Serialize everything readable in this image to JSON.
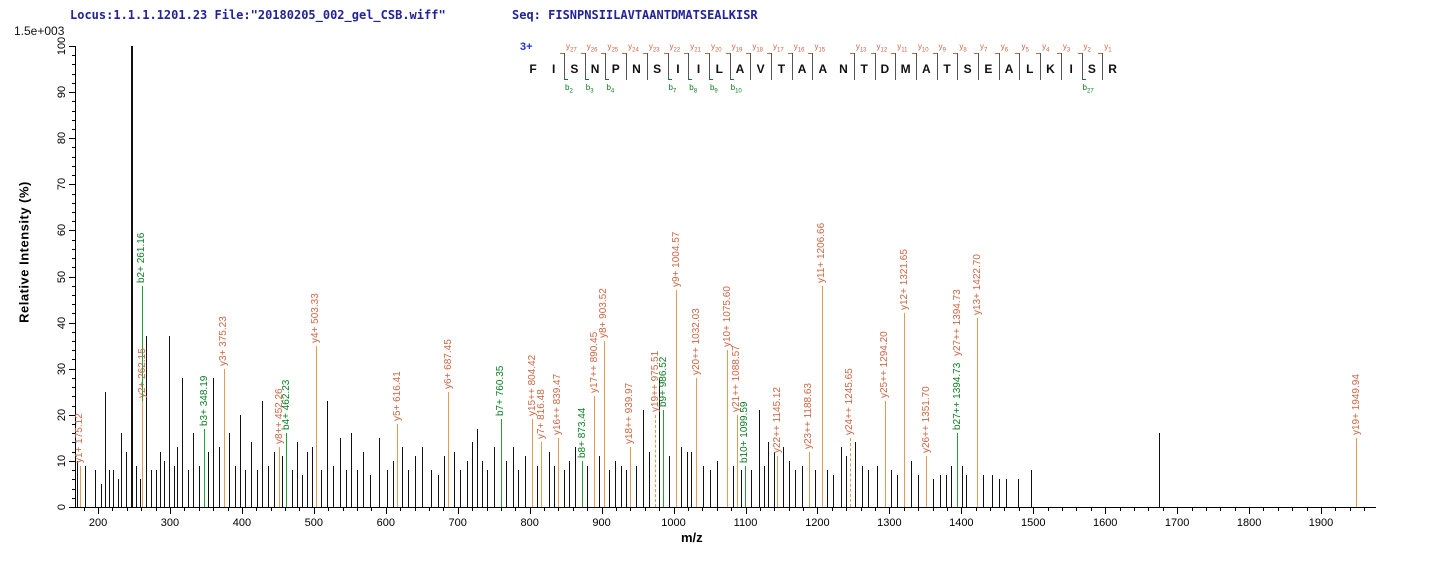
{
  "header": {
    "locus_file": "Locus:1.1.1.1201.23 File:\"20180205_002_gel_CSB.wiff\"",
    "seq_line": "Seq: FISNPNSIILAVTAANTDMATSEALKISR",
    "scale_label": "1.5e+003"
  },
  "sequence_panel": {
    "charge": "3+",
    "residues": "FISNPNSIILAVTAANTDMATSEALKISR",
    "y_marks": [
      [
        2,
        27
      ],
      [
        3,
        26
      ],
      [
        4,
        25
      ],
      [
        5,
        24
      ],
      [
        6,
        23
      ],
      [
        7,
        22
      ],
      [
        8,
        21
      ],
      [
        9,
        20
      ],
      [
        10,
        19
      ],
      [
        11,
        18
      ],
      [
        12,
        17
      ],
      [
        13,
        16
      ],
      [
        14,
        15
      ],
      [
        16,
        13
      ],
      [
        17,
        12
      ],
      [
        18,
        11
      ],
      [
        19,
        10
      ],
      [
        20,
        9
      ],
      [
        21,
        8
      ],
      [
        22,
        7
      ],
      [
        23,
        6
      ],
      [
        24,
        5
      ],
      [
        25,
        4
      ],
      [
        26,
        3
      ],
      [
        27,
        2
      ],
      [
        28,
        1
      ]
    ],
    "b_marks": [
      [
        2,
        2
      ],
      [
        3,
        3
      ],
      [
        4,
        4
      ],
      [
        7,
        7
      ],
      [
        8,
        8
      ],
      [
        9,
        9
      ],
      [
        10,
        10
      ],
      [
        27,
        27
      ]
    ]
  },
  "colors": {
    "y_ion_text": "#cc6644",
    "y_ion_line": "#e59a50",
    "b_ion_text": "#0a7d22",
    "b_ion_line": "#22a032",
    "background_peak": "#111111",
    "header_text": "#222299",
    "charge_text": "#2233cc",
    "axis": "#000000"
  },
  "chart_data": {
    "type": "bar",
    "title": "",
    "xlabel": "m/z",
    "ylabel": "Relative  Intensity (%)",
    "xlim": [
      168,
      1975
    ],
    "ylim": [
      0,
      100
    ],
    "x_major_ticks": [
      200,
      300,
      400,
      500,
      600,
      700,
      800,
      900,
      1000,
      1100,
      1200,
      1300,
      1400,
      1500,
      1600,
      1700,
      1800,
      1900
    ],
    "x_minor_step": 20,
    "y_major_ticks": [
      0,
      10,
      20,
      30,
      40,
      50,
      60,
      70,
      80,
      90,
      100
    ],
    "y_minor_step": 2,
    "annotated_peaks": [
      {
        "label": "y1+ 175.12",
        "mz": 175.12,
        "h": 9,
        "t": "y"
      },
      {
        "label": "b2+ 261.16",
        "mz": 261.16,
        "h": 48,
        "t": "b"
      },
      {
        "label": "y2+ 262.15",
        "mz": 262.15,
        "h": 23,
        "t": "y"
      },
      {
        "label": "b3+ 348.19",
        "mz": 348.19,
        "h": 17,
        "t": "b"
      },
      {
        "label": "y3+ 375.23",
        "mz": 375.23,
        "h": 30,
        "t": "y"
      },
      {
        "label": "y8++ 452.26",
        "mz": 452.26,
        "h": 13,
        "t": "y"
      },
      {
        "label": "b4+ 462.23",
        "mz": 462.23,
        "h": 16,
        "t": "b"
      },
      {
        "label": "y4+ 503.33",
        "mz": 503.33,
        "h": 35,
        "t": "y"
      },
      {
        "label": "y5+ 616.41",
        "mz": 616.41,
        "h": 18,
        "t": "y"
      },
      {
        "label": "y6+ 687.45",
        "mz": 687.45,
        "h": 25,
        "t": "y"
      },
      {
        "label": "b7+ 760.35",
        "mz": 760.35,
        "h": 19,
        "t": "b"
      },
      {
        "label": "y15++ 804.42",
        "mz": 804.42,
        "h": 19,
        "t": "y"
      },
      {
        "label": "y7+ 816.48",
        "mz": 816.48,
        "h": 14,
        "t": "y"
      },
      {
        "label": "y16++ 839.47",
        "mz": 839.47,
        "h": 15,
        "t": "y"
      },
      {
        "label": "b8+ 873.44",
        "mz": 873.44,
        "h": 10,
        "t": "b"
      },
      {
        "label": "y17++ 890.45",
        "mz": 890.45,
        "h": 24,
        "t": "y"
      },
      {
        "label": "y8+ 903.52",
        "mz": 903.52,
        "h": 36,
        "t": "y"
      },
      {
        "label": "y18++ 939.97",
        "mz": 939.97,
        "h": 13,
        "t": "y"
      },
      {
        "label": "y19++ 975.51",
        "mz": 975.51,
        "h": 20,
        "t": "y",
        "dashed": true
      },
      {
        "label": "b9+ 986.52",
        "mz": 986.52,
        "h": 21,
        "t": "b"
      },
      {
        "label": "y9+ 1004.57",
        "mz": 1004.57,
        "h": 47,
        "t": "y"
      },
      {
        "label": "y20++ 1032.03",
        "mz": 1032.03,
        "h": 28,
        "t": "y"
      },
      {
        "label": "y10+ 1075.60",
        "mz": 1075.6,
        "h": 34,
        "t": "y"
      },
      {
        "label": "y21++ 1088.57",
        "mz": 1088.57,
        "h": 20,
        "t": "y"
      },
      {
        "label": "b10+ 1099.59",
        "mz": 1099.59,
        "h": 9,
        "t": "b"
      },
      {
        "label": "y22++ 1145.12",
        "mz": 1145.12,
        "h": 11,
        "t": "y"
      },
      {
        "label": "y23++ 1188.63",
        "mz": 1188.63,
        "h": 12,
        "t": "y"
      },
      {
        "label": "y11+ 1206.66",
        "mz": 1206.66,
        "h": 48,
        "t": "y"
      },
      {
        "label": "y24++ 1245.65",
        "mz": 1245.65,
        "h": 15,
        "t": "y",
        "dashed": true
      },
      {
        "label": "y25++ 1294.20",
        "mz": 1294.2,
        "h": 23,
        "t": "y"
      },
      {
        "label": "y12+ 1321.65",
        "mz": 1321.65,
        "h": 42,
        "t": "y"
      },
      {
        "label": "y26++ 1351.70",
        "mz": 1351.7,
        "h": 11,
        "t": "y"
      },
      {
        "label": "b27++ 1394.73",
        "mz": 1394.73,
        "h": 16,
        "t": "b"
      },
      {
        "label": "y27++ 1394.73",
        "mz": 1394.73,
        "h": 16,
        "t": "y",
        "stack": 74,
        "label_only": true
      },
      {
        "label": "y13+ 1422.70",
        "mz": 1422.7,
        "h": 41,
        "t": "y"
      },
      {
        "label": "y19+ 1949.94",
        "mz": 1949.94,
        "h": 15,
        "t": "y"
      }
    ],
    "background_peaks": [
      [
        171,
        10
      ],
      [
        183,
        9
      ],
      [
        197,
        8
      ],
      [
        205,
        5
      ],
      [
        210,
        25
      ],
      [
        216,
        8
      ],
      [
        222,
        8
      ],
      [
        228,
        6
      ],
      [
        233,
        16
      ],
      [
        239,
        12
      ],
      [
        247,
        100
      ],
      [
        253,
        9
      ],
      [
        259,
        6
      ],
      [
        268,
        37
      ],
      [
        275,
        8
      ],
      [
        281,
        8
      ],
      [
        287,
        12
      ],
      [
        293,
        10
      ],
      [
        299,
        37
      ],
      [
        306,
        9
      ],
      [
        311,
        13
      ],
      [
        318,
        28
      ],
      [
        326,
        8
      ],
      [
        333,
        16
      ],
      [
        341,
        9
      ],
      [
        353,
        12
      ],
      [
        361,
        28
      ],
      [
        369,
        13
      ],
      [
        383,
        16
      ],
      [
        391,
        9
      ],
      [
        398,
        20
      ],
      [
        405,
        8
      ],
      [
        413,
        14
      ],
      [
        421,
        8
      ],
      [
        429,
        23
      ],
      [
        437,
        9
      ],
      [
        445,
        12
      ],
      [
        457,
        11
      ],
      [
        470,
        8
      ],
      [
        477,
        14
      ],
      [
        484,
        7
      ],
      [
        491,
        12
      ],
      [
        498,
        13
      ],
      [
        511,
        8
      ],
      [
        519,
        23
      ],
      [
        528,
        9
      ],
      [
        537,
        15
      ],
      [
        545,
        8
      ],
      [
        553,
        16
      ],
      [
        561,
        8
      ],
      [
        569,
        12
      ],
      [
        579,
        7
      ],
      [
        591,
        15
      ],
      [
        602,
        8
      ],
      [
        611,
        10
      ],
      [
        623,
        13
      ],
      [
        631,
        8
      ],
      [
        641,
        11
      ],
      [
        651,
        13
      ],
      [
        663,
        8
      ],
      [
        673,
        7
      ],
      [
        681,
        11
      ],
      [
        695,
        12
      ],
      [
        704,
        8
      ],
      [
        713,
        10
      ],
      [
        720,
        14
      ],
      [
        728,
        17
      ],
      [
        735,
        10
      ],
      [
        742,
        8
      ],
      [
        751,
        13
      ],
      [
        768,
        10
      ],
      [
        777,
        13
      ],
      [
        785,
        8
      ],
      [
        794,
        11
      ],
      [
        811,
        9
      ],
      [
        827,
        12
      ],
      [
        834,
        9
      ],
      [
        848,
        8
      ],
      [
        856,
        10
      ],
      [
        863,
        13
      ],
      [
        881,
        9
      ],
      [
        897,
        11
      ],
      [
        911,
        8
      ],
      [
        919,
        10
      ],
      [
        928,
        9
      ],
      [
        935,
        8
      ],
      [
        948,
        9
      ],
      [
        958,
        21
      ],
      [
        967,
        12
      ],
      [
        980,
        28
      ],
      [
        994,
        11
      ],
      [
        1011,
        13
      ],
      [
        1019,
        12
      ],
      [
        1025,
        12
      ],
      [
        1041,
        9
      ],
      [
        1051,
        8
      ],
      [
        1061,
        10
      ],
      [
        1083,
        9
      ],
      [
        1095,
        8
      ],
      [
        1109,
        8
      ],
      [
        1119,
        21
      ],
      [
        1126,
        9
      ],
      [
        1132,
        14
      ],
      [
        1140,
        12
      ],
      [
        1153,
        13
      ],
      [
        1161,
        10
      ],
      [
        1169,
        8
      ],
      [
        1179,
        9
      ],
      [
        1197,
        8
      ],
      [
        1214,
        8
      ],
      [
        1223,
        7
      ],
      [
        1233,
        13
      ],
      [
        1241,
        11
      ],
      [
        1253,
        14
      ],
      [
        1263,
        9
      ],
      [
        1271,
        8
      ],
      [
        1283,
        9
      ],
      [
        1303,
        8
      ],
      [
        1311,
        7
      ],
      [
        1331,
        10
      ],
      [
        1341,
        7
      ],
      [
        1361,
        6
      ],
      [
        1371,
        7
      ],
      [
        1379,
        7
      ],
      [
        1387,
        9
      ],
      [
        1401,
        9
      ],
      [
        1407,
        7
      ],
      [
        1431,
        7
      ],
      [
        1443,
        7
      ],
      [
        1453,
        6
      ],
      [
        1463,
        6
      ],
      [
        1479,
        6
      ],
      [
        1497,
        8
      ],
      [
        1675,
        16
      ]
    ]
  }
}
